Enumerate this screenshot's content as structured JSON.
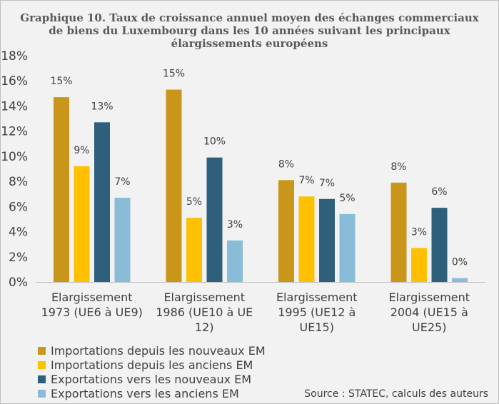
{
  "chart_data": {
    "type": "bar",
    "title_lines": [
      "Graphique 10. Taux de croissance annuel moyen des échanges commerciaux",
      "de biens du Luxembourg dans les 10 années suivant les principaux",
      "élargissements européens"
    ],
    "categories": [
      [
        "Elargissement",
        "1973 (UE6 à UE9)"
      ],
      [
        "Elargissement",
        "1986 (UE10 à UE",
        "12)"
      ],
      [
        "Elargissement",
        "1995 (UE12 à",
        "UE15)"
      ],
      [
        "Elargissement",
        "2004 (UE15 à",
        "UE25)"
      ]
    ],
    "series": [
      {
        "name": "Importations depuis les nouveaux EM",
        "color": "#c9961a",
        "values": [
          14.7,
          15.3,
          8.1,
          7.9
        ],
        "labels": [
          "15%",
          "15%",
          "8%",
          "8%"
        ]
      },
      {
        "name": "Importations depuis les anciens EM",
        "color": "#ffc000",
        "values": [
          9.2,
          5.1,
          6.8,
          2.7
        ],
        "labels": [
          "9%",
          "5%",
          "7%",
          "3%"
        ]
      },
      {
        "name": "Exportations vers les nouveaux EM",
        "color": "#2e5f7b",
        "values": [
          12.7,
          9.9,
          6.6,
          5.9
        ],
        "labels": [
          "13%",
          "10%",
          "7%",
          "6%"
        ]
      },
      {
        "name": "Exportations vers les anciens EM",
        "color": "#89bcd6",
        "values": [
          6.7,
          3.3,
          5.4,
          0.3
        ],
        "labels": [
          "7%",
          "3%",
          "5%",
          "0%"
        ]
      }
    ],
    "ylim": [
      0,
      18
    ],
    "yticks": [
      0,
      2,
      4,
      6,
      8,
      10,
      12,
      14,
      16,
      18
    ],
    "ytick_labels": [
      "0%",
      "2%",
      "4%",
      "6%",
      "8%",
      "10%",
      "12%",
      "14%",
      "16%",
      "18%"
    ],
    "grid": false,
    "legend_position": "bottom-left",
    "source": "Source : STATEC, calculs des auteurs"
  }
}
